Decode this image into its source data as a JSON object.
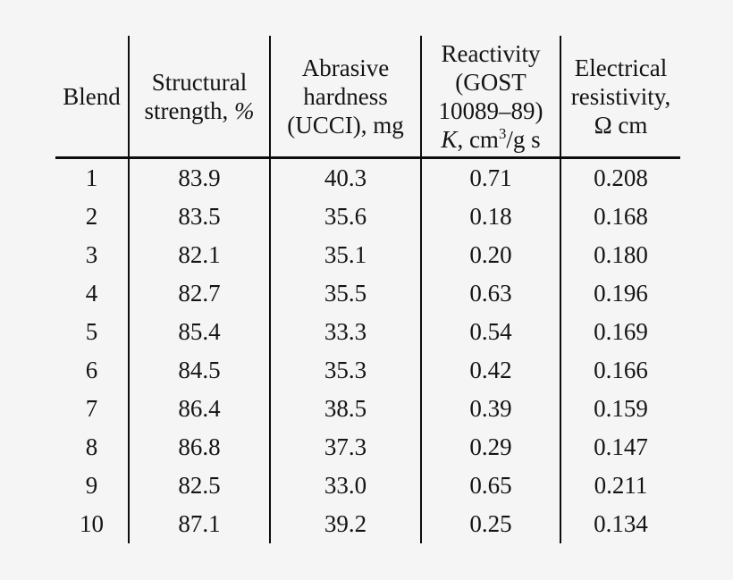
{
  "colors": {
    "background": "#f5f5f5",
    "text": "#141414",
    "rule": "#0d0d0d"
  },
  "table": {
    "header": {
      "blend": "Blend",
      "structural": {
        "line1": "Structural",
        "line2_prefix": "strength, ",
        "line2_unit_italic": "%"
      },
      "abrasive": {
        "line1": "Abrasive",
        "line2": "hardness",
        "line3": "(UCCI), mg"
      },
      "reactivity": {
        "line1": "Reactivity",
        "line2": "(GOST",
        "line3": "10089–89)",
        "line4_symbol_italic": "K",
        "line4_mid": ", cm",
        "line4_sup": "3",
        "line4_suffix": "/g s"
      },
      "electrical": {
        "line1": "Electrical",
        "line2": "resistivity,",
        "line3": "Ω cm"
      }
    },
    "rows": [
      [
        "1",
        "83.9",
        "40.3",
        "0.71",
        "0.208"
      ],
      [
        "2",
        "83.5",
        "35.6",
        "0.18",
        "0.168"
      ],
      [
        "3",
        "82.1",
        "35.1",
        "0.20",
        "0.180"
      ],
      [
        "4",
        "82.7",
        "35.5",
        "0.63",
        "0.196"
      ],
      [
        "5",
        "85.4",
        "33.3",
        "0.54",
        "0.169"
      ],
      [
        "6",
        "84.5",
        "35.3",
        "0.42",
        "0.166"
      ],
      [
        "7",
        "86.4",
        "38.5",
        "0.39",
        "0.159"
      ],
      [
        "8",
        "86.8",
        "37.3",
        "0.29",
        "0.147"
      ],
      [
        "9",
        "82.5",
        "33.0",
        "0.65",
        "0.211"
      ],
      [
        "10",
        "87.1",
        "39.2",
        "0.25",
        "0.134"
      ]
    ]
  }
}
